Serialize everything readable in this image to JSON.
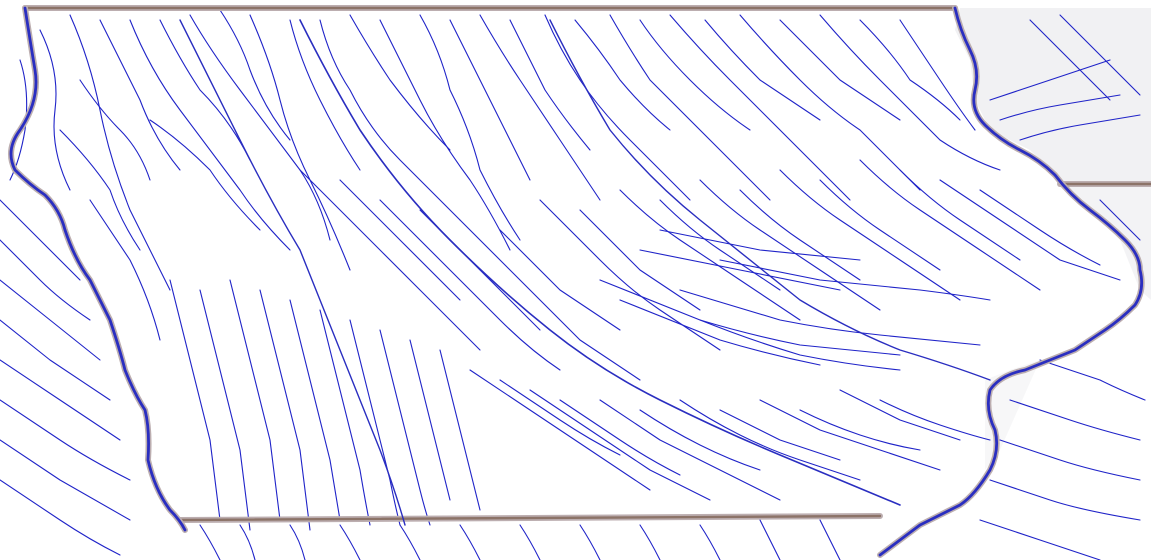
{
  "map": {
    "colors": {
      "background": "#ffffff",
      "state_boundary": "#8c7368",
      "boundary_halo": "#bcaeb0",
      "major_river": "#2a2ec0",
      "minor_river": "#1f23c8",
      "shaded_relief": "#e6e6ea"
    },
    "layers": [
      "shaded-relief",
      "state-boundaries",
      "major-rivers",
      "streams"
    ]
  }
}
